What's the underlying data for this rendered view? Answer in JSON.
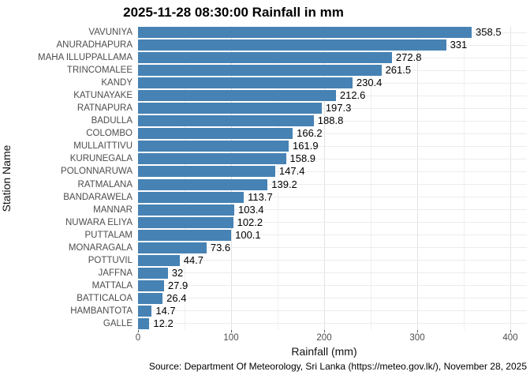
{
  "title": "2025-11-28 08:30:00 Rainfall in mm",
  "caption": "Source: Department Of Meteorology, Sri Lanka (https://meteo.gov.lk/), November 28, 2025",
  "chart_data": {
    "type": "bar",
    "orientation": "horizontal",
    "title": "2025-11-28 08:30:00 Rainfall in mm",
    "xlabel": "Rainfall (mm)",
    "ylabel": "Station Name",
    "categories": [
      "VAVUNIYA",
      "ANURADHAPURA",
      "MAHA ILLUPPALLAMA",
      "TRINCOMALEE",
      "KANDY",
      "KATUNAYAKE",
      "RATNAPURA",
      "BADULLA",
      "COLOMBO",
      "MULLAITTIVU",
      "KURUNEGALA",
      "POLONNARUWA",
      "RATMALANA",
      "BANDARAWELA",
      "MANNAR",
      "NUWARA ELIYA",
      "PUTTALAM",
      "MONARAGALA",
      "POTTUVIL",
      "JAFFNA",
      "MATTALA",
      "BATTICALOA",
      "HAMBANTOTA",
      "GALLE"
    ],
    "values": [
      358.5,
      331,
      272.8,
      261.5,
      230.4,
      212.6,
      197.3,
      188.8,
      166.2,
      161.9,
      158.9,
      147.4,
      139.2,
      113.7,
      103.4,
      102.2,
      100.1,
      73.6,
      44.7,
      32,
      27.9,
      26.4,
      14.7,
      12.2
    ],
    "value_labels": [
      "358.5",
      "331",
      "272.8",
      "261.5",
      "230.4",
      "212.6",
      "197.3",
      "188.8",
      "166.2",
      "161.9",
      "158.9",
      "147.4",
      "139.2",
      "113.7",
      "103.4",
      "102.2",
      "100.1",
      "73.6",
      "44.7",
      "32",
      "27.9",
      "26.4",
      "14.7",
      "12.2"
    ],
    "xlim": [
      0,
      418
    ],
    "x_major_ticks": [
      0,
      100,
      200,
      300,
      400
    ],
    "x_minor_ticks": [
      50,
      150,
      250,
      350
    ],
    "bar_color": "#4682B4",
    "grid": true,
    "legend": false
  }
}
